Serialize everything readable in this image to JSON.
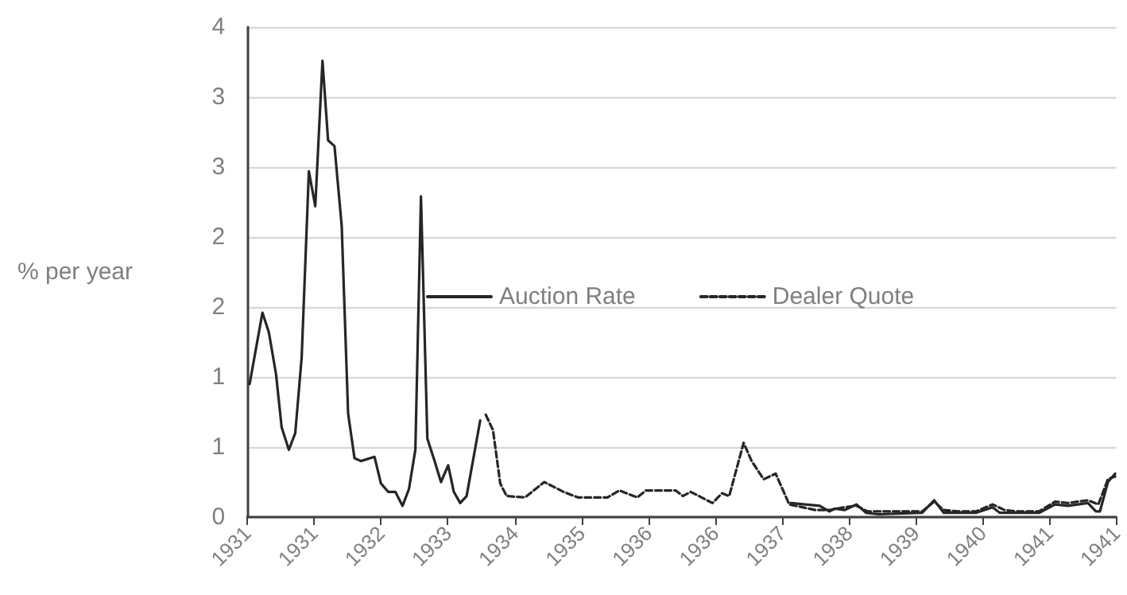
{
  "chart_data": {
    "type": "line",
    "ylabel": "% per year",
    "xlim": [
      1930.57,
      1941.425
    ],
    "xticks": [
      {
        "value": 1930.57,
        "label": "1931"
      },
      {
        "value": 1931.405,
        "label": "1931"
      },
      {
        "value": 1932.24,
        "label": "1932"
      },
      {
        "value": 1933.075,
        "label": "1933"
      },
      {
        "value": 1933.91,
        "label": "1934"
      },
      {
        "value": 1934.745,
        "label": "1935"
      },
      {
        "value": 1935.58,
        "label": "1936"
      },
      {
        "value": 1936.415,
        "label": "1936"
      },
      {
        "value": 1937.25,
        "label": "1937"
      },
      {
        "value": 1938.085,
        "label": "1938"
      },
      {
        "value": 1938.92,
        "label": "1939"
      },
      {
        "value": 1939.755,
        "label": "1940"
      },
      {
        "value": 1940.59,
        "label": "1941"
      },
      {
        "value": 1941.425,
        "label": "1941"
      }
    ],
    "ylim": [
      0,
      3.5
    ],
    "yticks": [
      {
        "value": 0,
        "label": "0"
      },
      {
        "value": 0.5,
        "label": "1"
      },
      {
        "value": 1,
        "label": "1"
      },
      {
        "value": 1.5,
        "label": "2"
      },
      {
        "value": 2,
        "label": "2"
      },
      {
        "value": 2.5,
        "label": "3"
      },
      {
        "value": 3,
        "label": "3"
      },
      {
        "value": 3.5,
        "label": "4"
      }
    ],
    "grid": "y",
    "legend": "center",
    "marker": "none",
    "series": [
      {
        "name": "Auction Rate",
        "color": "#262626",
        "line_style": "solid",
        "x": [
          1930.6,
          1930.76,
          1930.84,
          1930.93,
          1931.0,
          1931.09,
          1931.17,
          1931.25,
          1931.34,
          1931.42,
          1931.51,
          1931.58,
          1931.66,
          1931.75,
          1931.83,
          1931.91,
          1931.99,
          1932.16,
          1932.24,
          1932.33,
          1932.42,
          1932.51,
          1932.59,
          1932.67,
          1932.74,
          1932.82,
          1932.91,
          1932.99,
          1933.08,
          1933.15,
          1933.23,
          1933.31,
          1933.48,
          null,
          1937.36,
          1937.72,
          1937.84,
          1937.91,
          1938.03,
          1938.18,
          1938.3,
          1938.45,
          1939.0,
          1939.15,
          1939.27,
          1939.67,
          1939.88,
          1939.97,
          1940.46,
          1940.66,
          1940.82,
          1941.07,
          1941.17,
          1941.22,
          1941.32,
          1941.41
        ],
        "values": [
          0.95,
          1.46,
          1.32,
          1.02,
          0.64,
          0.48,
          0.6,
          1.14,
          2.47,
          2.22,
          3.26,
          2.69,
          2.65,
          2.08,
          0.74,
          0.42,
          0.4,
          0.43,
          0.24,
          0.18,
          0.18,
          0.08,
          0.2,
          0.48,
          2.29,
          0.56,
          0.4,
          0.25,
          0.37,
          0.18,
          0.1,
          0.15,
          0.69,
          null,
          0.1,
          0.08,
          0.04,
          0.06,
          0.05,
          0.09,
          0.03,
          0.02,
          0.03,
          0.12,
          0.03,
          0.03,
          0.07,
          0.03,
          0.03,
          0.09,
          0.08,
          0.1,
          0.04,
          0.04,
          0.25,
          0.31
        ]
      },
      {
        "name": "Dealer Quote",
        "color": "#262626",
        "line_style": "dashed",
        "x": [
          1933.55,
          1933.64,
          1933.73,
          1933.81,
          1934.04,
          1934.28,
          1934.52,
          1934.7,
          1935.07,
          1935.22,
          1935.44,
          1935.55,
          1935.92,
          1936.01,
          1936.11,
          1936.38,
          1936.5,
          1936.59,
          1936.77,
          1936.87,
          1937.02,
          1937.17,
          1937.34,
          1937.67,
          1937.84,
          1938.03,
          1938.18,
          1938.32,
          1939.0,
          1939.15,
          1939.27,
          1939.45,
          1939.67,
          1939.88,
          1940.03,
          1940.17,
          1940.46,
          1940.66,
          1940.82,
          1941.07,
          1941.2,
          1941.32,
          1941.41
        ],
        "values": [
          0.73,
          0.62,
          0.24,
          0.15,
          0.14,
          0.25,
          0.18,
          0.14,
          0.14,
          0.19,
          0.14,
          0.19,
          0.19,
          0.15,
          0.18,
          0.1,
          0.17,
          0.15,
          0.53,
          0.4,
          0.27,
          0.31,
          0.09,
          0.05,
          0.05,
          0.07,
          0.08,
          0.04,
          0.04,
          0.11,
          0.05,
          0.04,
          0.04,
          0.09,
          0.05,
          0.04,
          0.04,
          0.11,
          0.1,
          0.12,
          0.09,
          0.27,
          0.29
        ]
      }
    ]
  }
}
